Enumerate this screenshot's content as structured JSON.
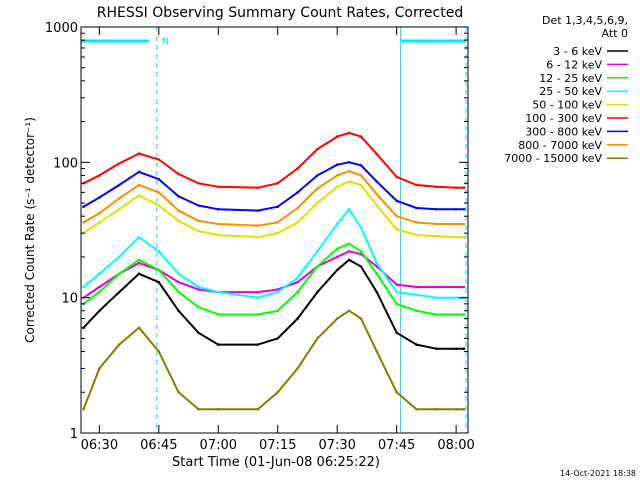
{
  "chart_data": {
    "type": "line",
    "title": "RHESSI Observing Summary Count Rates, Corrected",
    "xlabel": "Start Time (01-Jun-08 06:25:22)",
    "ylabel": "Corrected Count Rate (s⁻¹ detector⁻¹)",
    "yscale": "log",
    "ylim": [
      1,
      1000
    ],
    "xlim": [
      "06:25:22",
      "08:03:00"
    ],
    "x_ticks": [
      "06:30",
      "06:45",
      "07:00",
      "07:15",
      "07:30",
      "07:45",
      "08:00"
    ],
    "y_ticks": [
      "1",
      "10",
      "100",
      "1000"
    ],
    "legend": {
      "placement": "right",
      "header_line1": "Det 1,3,4,5,6,9,",
      "header_line2": "Att 0"
    },
    "night_flag": {
      "label": "N",
      "color": "#00e5ee"
    },
    "footer_date": "14-Oct-2021 18:38",
    "series": [
      {
        "name": "3 - 6 keV",
        "color": "#000000",
        "x": [
          "06:26",
          "06:30",
          "06:35",
          "06:40",
          "06:45",
          "06:50",
          "06:55",
          "07:00",
          "07:10",
          "07:15",
          "07:20",
          "07:25",
          "07:30",
          "07:33",
          "07:36",
          "07:40",
          "07:45",
          "07:50",
          "07:55",
          "08:00",
          "08:02"
        ],
        "values": [
          6,
          8,
          11,
          15,
          13,
          8,
          5.5,
          4.5,
          4.5,
          5,
          7,
          11,
          16,
          19,
          17,
          11,
          5.5,
          4.5,
          4.2,
          4.2,
          4.2
        ]
      },
      {
        "name": "6 - 12 keV",
        "color": "#e100e1",
        "x": [
          "06:26",
          "06:30",
          "06:35",
          "06:40",
          "06:45",
          "06:50",
          "06:55",
          "07:00",
          "07:10",
          "07:15",
          "07:20",
          "07:25",
          "07:30",
          "07:33",
          "07:36",
          "07:40",
          "07:45",
          "07:50",
          "07:55",
          "08:00",
          "08:02"
        ],
        "values": [
          10,
          12,
          15,
          18,
          16,
          13,
          11.5,
          11,
          11,
          11.5,
          13,
          17,
          20,
          22,
          21,
          17,
          12.5,
          12,
          12,
          12,
          12
        ]
      },
      {
        "name": "12 - 25 keV",
        "color": "#00ff00",
        "x": [
          "06:26",
          "06:30",
          "06:35",
          "06:40",
          "06:45",
          "06:50",
          "06:55",
          "07:00",
          "07:10",
          "07:15",
          "07:20",
          "07:25",
          "07:30",
          "07:33",
          "07:36",
          "07:40",
          "07:45",
          "07:50",
          "07:55",
          "08:00",
          "08:02"
        ],
        "values": [
          9,
          11,
          15,
          19,
          16,
          11,
          8.5,
          7.5,
          7.5,
          8,
          11,
          17,
          23,
          25,
          22,
          15,
          9,
          8,
          7.5,
          7.5,
          7.5
        ]
      },
      {
        "name": "25 - 50 keV",
        "color": "#00ffff",
        "x": [
          "06:26",
          "06:30",
          "06:35",
          "06:40",
          "06:45",
          "06:50",
          "06:55",
          "07:00",
          "07:10",
          "07:15",
          "07:20",
          "07:25",
          "07:30",
          "07:33",
          "07:36",
          "07:40",
          "07:45",
          "07:50",
          "07:55",
          "08:00",
          "08:02"
        ],
        "values": [
          12,
          15,
          20,
          28,
          22,
          15,
          12,
          11,
          10,
          11,
          14,
          22,
          35,
          45,
          33,
          18,
          11,
          10.5,
          10,
          10,
          10
        ]
      },
      {
        "name": "50 - 100 keV",
        "color": "#e1e100",
        "x": [
          "06:26",
          "06:30",
          "06:35",
          "06:40",
          "06:45",
          "06:50",
          "06:55",
          "07:00",
          "07:10",
          "07:15",
          "07:20",
          "07:25",
          "07:30",
          "07:33",
          "07:36",
          "07:40",
          "07:45",
          "07:50",
          "07:55",
          "08:00",
          "08:02"
        ],
        "values": [
          30,
          36,
          45,
          57,
          48,
          37,
          31,
          29,
          28,
          30,
          36,
          50,
          66,
          72,
          68,
          48,
          32,
          29,
          28.5,
          28,
          28
        ]
      },
      {
        "name": "100 - 300 keV",
        "color": "#ff0000",
        "x": [
          "06:26",
          "06:30",
          "06:35",
          "06:40",
          "06:45",
          "06:50",
          "06:55",
          "07:00",
          "07:10",
          "07:15",
          "07:20",
          "07:25",
          "07:30",
          "07:33",
          "07:36",
          "07:40",
          "07:45",
          "07:50",
          "07:55",
          "08:00",
          "08:02"
        ],
        "values": [
          70,
          80,
          98,
          116,
          105,
          82,
          70,
          66,
          65,
          70,
          90,
          125,
          155,
          165,
          155,
          115,
          78,
          68,
          66,
          65,
          65
        ]
      },
      {
        "name": "300 - 800 keV",
        "color": "#0000ff",
        "x": [
          "06:26",
          "06:30",
          "06:35",
          "06:40",
          "06:45",
          "06:50",
          "06:55",
          "07:00",
          "07:10",
          "07:15",
          "07:20",
          "07:25",
          "07:30",
          "07:33",
          "07:36",
          "07:40",
          "07:45",
          "07:50",
          "07:55",
          "08:00",
          "08:02"
        ],
        "values": [
          47,
          55,
          68,
          85,
          75,
          56,
          48,
          45,
          44,
          47,
          60,
          80,
          96,
          100,
          95,
          72,
          52,
          46,
          45,
          45,
          45
        ]
      },
      {
        "name": "800 - 7000 keV",
        "color": "#ff8c00",
        "x": [
          "06:26",
          "06:30",
          "06:35",
          "06:40",
          "06:45",
          "06:50",
          "06:55",
          "07:00",
          "07:10",
          "07:15",
          "07:20",
          "07:25",
          "07:30",
          "07:33",
          "07:36",
          "07:40",
          "07:45",
          "07:50",
          "07:55",
          "08:00",
          "08:02"
        ],
        "values": [
          36,
          42,
          54,
          68,
          60,
          44,
          37,
          35,
          34,
          36,
          46,
          64,
          80,
          86,
          80,
          58,
          40,
          36,
          35,
          35,
          35
        ]
      },
      {
        "name": "7000 - 15000 keV",
        "color": "#808000",
        "x": [
          "06:26",
          "06:30",
          "06:35",
          "06:40",
          "06:45",
          "06:50",
          "06:55",
          "07:00",
          "07:10",
          "07:15",
          "07:20",
          "07:25",
          "07:30",
          "07:33",
          "07:36",
          "07:40",
          "07:45",
          "07:50",
          "07:55",
          "08:00",
          "08:02"
        ],
        "values": [
          1.5,
          3,
          4.5,
          6,
          4,
          2,
          1.5,
          1.5,
          1.5,
          2,
          3,
          5,
          7,
          8,
          7,
          4,
          2,
          1.5,
          1.5,
          1.5,
          1.5
        ]
      }
    ]
  }
}
